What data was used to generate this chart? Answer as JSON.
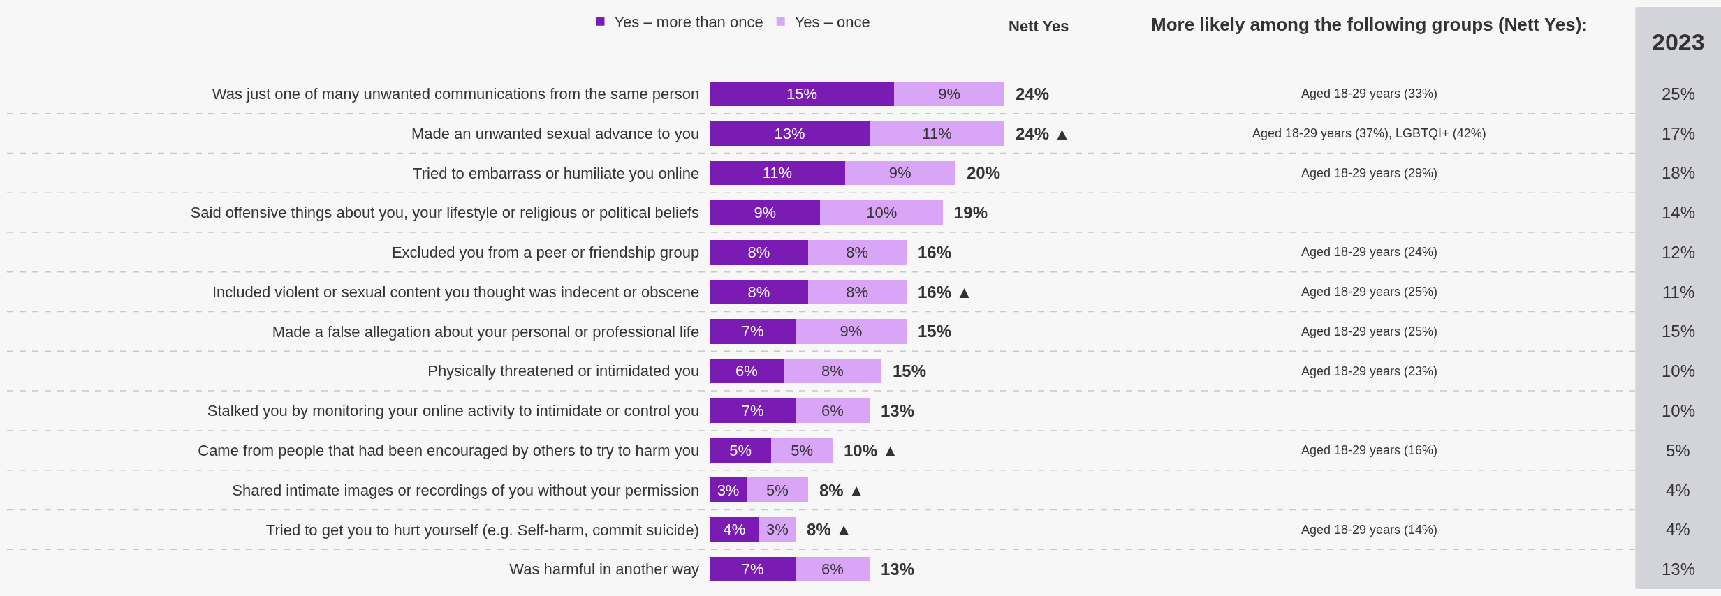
{
  "chart_data": [
    {
      "type": "bar",
      "orientation": "horizontal",
      "stacked": true,
      "title": "Nett Yes",
      "legend": "top",
      "grid": "y",
      "categories": [
        "Was just one of many unwanted communications from the same person",
        "Made an unwanted sexual advance to you",
        "Tried to embarrass or humiliate you online",
        "Said offensive things about you, your lifestyle or religious or political beliefs",
        "Excluded you from a peer or friendship group",
        "Included violent or sexual content you thought was indecent or obscene",
        "Made a false allegation about your personal or professional life",
        "Physically threatened or intimidated you",
        "Stalked you by monitoring your online activity to intimidate or control you",
        "Came from people that had been encouraged by others to try to harm you",
        "Shared intimate images or recordings of you without your permission",
        "Tried to get you to hurt yourself (e.g. Self-harm, commit suicide)",
        "Was harmful in another way"
      ],
      "series": [
        {
          "name": "Yes – more than once",
          "color": "#7a1bb3",
          "values": [
            15,
            13,
            11,
            9,
            8,
            8,
            7,
            6,
            7,
            5,
            3,
            4,
            7
          ],
          "value_labels": [
            "15%",
            "13%",
            "11%",
            "9%",
            "8%",
            "8%",
            "7%",
            "6%",
            "7%",
            "5%",
            "3%",
            "4%",
            "7%"
          ]
        },
        {
          "name": "Yes – once",
          "color": "#d9a6f7",
          "values": [
            9,
            11,
            9,
            10,
            8,
            8,
            9,
            8,
            6,
            5,
            5,
            3,
            6
          ],
          "value_labels": [
            "9%",
            "11%",
            "9%",
            "10%",
            "8%",
            "8%",
            "9%",
            "8%",
            "6%",
            "5%",
            "5%",
            "3%",
            "6%"
          ]
        }
      ],
      "totals": [
        "24%",
        "24% ▲",
        "20%",
        "19%",
        "16%",
        "16% ▲",
        "15%",
        "15%",
        "13%",
        "10% ▲",
        "8% ▲",
        "8% ▲",
        "13%"
      ]
    },
    {
      "type": "other",
      "title": "More likely among the following groups (Nett Yes):",
      "annotations": [
        "Aged 18-29 years (33%)",
        "Aged 18-29 years (37%), LGBTQI+ (42%)",
        "Aged 18-29 years (29%)",
        null,
        "Aged 18-29 years (24%)",
        "Aged 18-29 years (25%)",
        "Aged 18-29 years (25%)",
        "Aged 18-29 years (23%)",
        null,
        "Aged 18-29 years (16%)",
        null,
        "Aged 18-29 years (14%)",
        null
      ]
    },
    {
      "type": "other",
      "title": "2023",
      "annotations": [
        "25%",
        "17%",
        "18%",
        "14%",
        "12%",
        "11%",
        "15%",
        "10%",
        "10%",
        "5%",
        "4%",
        "4%",
        "13%"
      ]
    }
  ]
}
